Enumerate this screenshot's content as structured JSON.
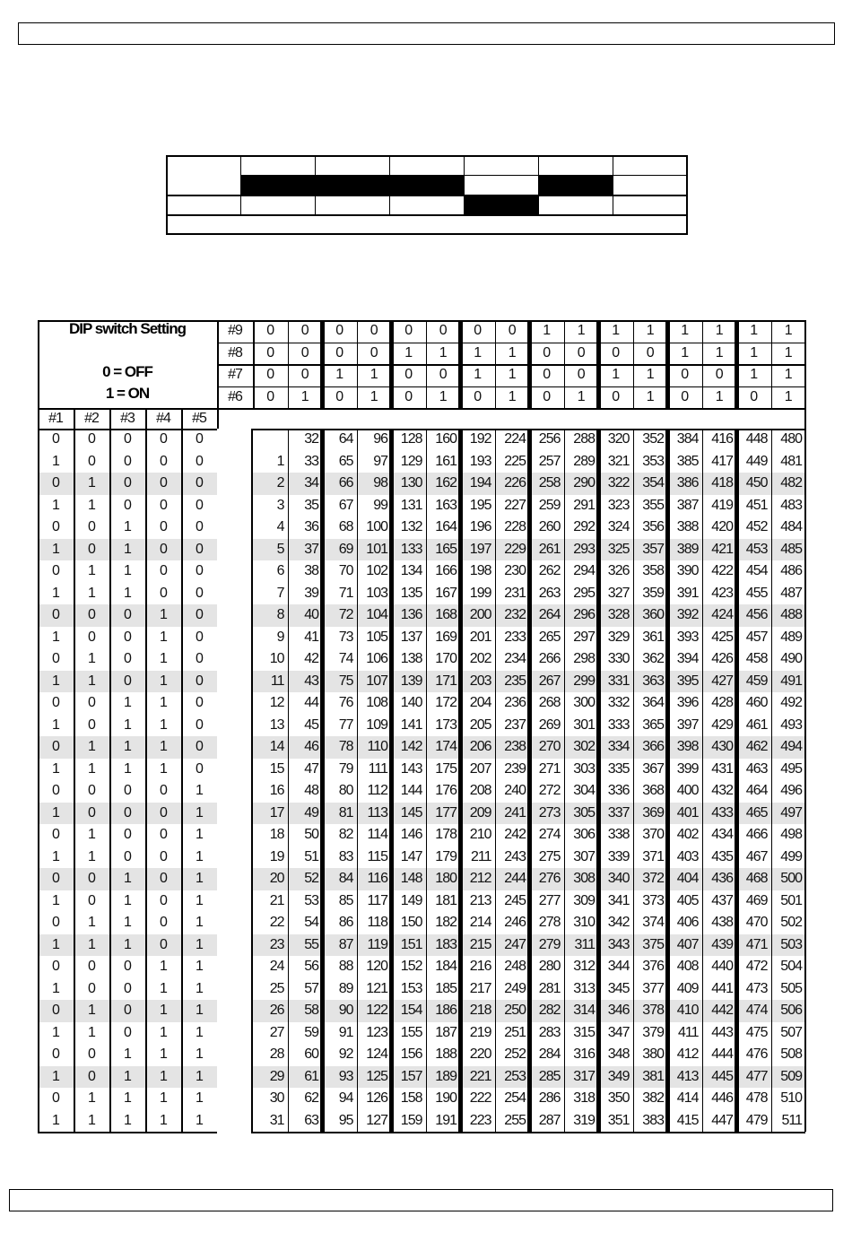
{
  "header_box": {},
  "footer_box": {},
  "small_table": {
    "columns": 7,
    "filled_cells_row2": [
      1,
      2,
      3,
      5
    ],
    "filled_cells_row3": [
      4
    ]
  },
  "dip_table": {
    "title": "DIP switch Setting",
    "legend_off": "0 = OFF",
    "legend_on": "1 = ON",
    "switch_labels": [
      "#1",
      "#2",
      "#3",
      "#4",
      "#5"
    ],
    "header_rows": [
      {
        "label": "#9",
        "bits": [
          0,
          0,
          0,
          0,
          0,
          0,
          0,
          0,
          1,
          1,
          1,
          1,
          1,
          1,
          1,
          1
        ]
      },
      {
        "label": "#8",
        "bits": [
          0,
          0,
          0,
          0,
          1,
          1,
          1,
          1,
          0,
          0,
          0,
          0,
          1,
          1,
          1,
          1
        ]
      },
      {
        "label": "#7",
        "bits": [
          0,
          0,
          1,
          1,
          0,
          0,
          1,
          1,
          0,
          0,
          1,
          1,
          0,
          0,
          1,
          1
        ]
      },
      {
        "label": "#6",
        "bits": [
          0,
          1,
          0,
          1,
          0,
          1,
          0,
          1,
          0,
          1,
          0,
          1,
          0,
          1,
          0,
          1
        ]
      }
    ],
    "shaded_rows": [
      2,
      5,
      8,
      11,
      14,
      17,
      20,
      23,
      26,
      29
    ],
    "shade_color": "#e4e4e4",
    "rows": [
      {
        "switches": [
          0,
          0,
          0,
          0,
          0
        ],
        "values": [
          "",
          32,
          64,
          96,
          128,
          160,
          192,
          224,
          256,
          288,
          320,
          352,
          384,
          416,
          448,
          480
        ]
      },
      {
        "switches": [
          1,
          0,
          0,
          0,
          0
        ],
        "values": [
          1,
          33,
          65,
          97,
          129,
          161,
          193,
          225,
          257,
          289,
          321,
          353,
          385,
          417,
          449,
          481
        ]
      },
      {
        "switches": [
          0,
          1,
          0,
          0,
          0
        ],
        "values": [
          2,
          34,
          66,
          98,
          130,
          162,
          194,
          226,
          258,
          290,
          322,
          354,
          386,
          418,
          450,
          482
        ]
      },
      {
        "switches": [
          1,
          1,
          0,
          0,
          0
        ],
        "values": [
          3,
          35,
          67,
          99,
          131,
          163,
          195,
          227,
          259,
          291,
          323,
          355,
          387,
          419,
          451,
          483
        ]
      },
      {
        "switches": [
          0,
          0,
          1,
          0,
          0
        ],
        "values": [
          4,
          36,
          68,
          100,
          132,
          164,
          196,
          228,
          260,
          292,
          324,
          356,
          388,
          420,
          452,
          484
        ]
      },
      {
        "switches": [
          1,
          0,
          1,
          0,
          0
        ],
        "values": [
          5,
          37,
          69,
          101,
          133,
          165,
          197,
          229,
          261,
          293,
          325,
          357,
          389,
          421,
          453,
          485
        ]
      },
      {
        "switches": [
          0,
          1,
          1,
          0,
          0
        ],
        "values": [
          6,
          38,
          70,
          102,
          134,
          166,
          198,
          230,
          262,
          294,
          326,
          358,
          390,
          422,
          454,
          486
        ]
      },
      {
        "switches": [
          1,
          1,
          1,
          0,
          0
        ],
        "values": [
          7,
          39,
          71,
          103,
          135,
          167,
          199,
          231,
          263,
          295,
          327,
          359,
          391,
          423,
          455,
          487
        ]
      },
      {
        "switches": [
          0,
          0,
          0,
          1,
          0
        ],
        "values": [
          8,
          40,
          72,
          104,
          136,
          168,
          200,
          232,
          264,
          296,
          328,
          360,
          392,
          424,
          456,
          488
        ]
      },
      {
        "switches": [
          1,
          0,
          0,
          1,
          0
        ],
        "values": [
          9,
          41,
          73,
          105,
          137,
          169,
          201,
          233,
          265,
          297,
          329,
          361,
          393,
          425,
          457,
          489
        ]
      },
      {
        "switches": [
          0,
          1,
          0,
          1,
          0
        ],
        "values": [
          10,
          42,
          74,
          106,
          138,
          170,
          202,
          234,
          266,
          298,
          330,
          362,
          394,
          426,
          458,
          490
        ]
      },
      {
        "switches": [
          1,
          1,
          0,
          1,
          0
        ],
        "values": [
          11,
          43,
          75,
          107,
          139,
          171,
          203,
          235,
          267,
          299,
          331,
          363,
          395,
          427,
          459,
          491
        ]
      },
      {
        "switches": [
          0,
          0,
          1,
          1,
          0
        ],
        "values": [
          12,
          44,
          76,
          108,
          140,
          172,
          204,
          236,
          268,
          300,
          332,
          364,
          396,
          428,
          460,
          492
        ]
      },
      {
        "switches": [
          1,
          0,
          1,
          1,
          0
        ],
        "values": [
          13,
          45,
          77,
          109,
          141,
          173,
          205,
          237,
          269,
          301,
          333,
          365,
          397,
          429,
          461,
          493
        ]
      },
      {
        "switches": [
          0,
          1,
          1,
          1,
          0
        ],
        "values": [
          14,
          46,
          78,
          110,
          142,
          174,
          206,
          238,
          270,
          302,
          334,
          366,
          398,
          430,
          462,
          494
        ]
      },
      {
        "switches": [
          1,
          1,
          1,
          1,
          0
        ],
        "values": [
          15,
          47,
          79,
          111,
          143,
          175,
          207,
          239,
          271,
          303,
          335,
          367,
          399,
          431,
          463,
          495
        ]
      },
      {
        "switches": [
          0,
          0,
          0,
          0,
          1
        ],
        "values": [
          16,
          48,
          80,
          112,
          144,
          176,
          208,
          240,
          272,
          304,
          336,
          368,
          400,
          432,
          464,
          496
        ]
      },
      {
        "switches": [
          1,
          0,
          0,
          0,
          1
        ],
        "values": [
          17,
          49,
          81,
          113,
          145,
          177,
          209,
          241,
          273,
          305,
          337,
          369,
          401,
          433,
          465,
          497
        ]
      },
      {
        "switches": [
          0,
          1,
          0,
          0,
          1
        ],
        "values": [
          18,
          50,
          82,
          114,
          146,
          178,
          210,
          242,
          274,
          306,
          338,
          370,
          402,
          434,
          466,
          498
        ]
      },
      {
        "switches": [
          1,
          1,
          0,
          0,
          1
        ],
        "values": [
          19,
          51,
          83,
          115,
          147,
          179,
          211,
          243,
          275,
          307,
          339,
          371,
          403,
          435,
          467,
          499
        ]
      },
      {
        "switches": [
          0,
          0,
          1,
          0,
          1
        ],
        "values": [
          20,
          52,
          84,
          116,
          148,
          180,
          212,
          244,
          276,
          308,
          340,
          372,
          404,
          436,
          468,
          500
        ]
      },
      {
        "switches": [
          1,
          0,
          1,
          0,
          1
        ],
        "values": [
          21,
          53,
          85,
          117,
          149,
          181,
          213,
          245,
          277,
          309,
          341,
          373,
          405,
          437,
          469,
          501
        ]
      },
      {
        "switches": [
          0,
          1,
          1,
          0,
          1
        ],
        "values": [
          22,
          54,
          86,
          118,
          150,
          182,
          214,
          246,
          278,
          310,
          342,
          374,
          406,
          438,
          470,
          502
        ]
      },
      {
        "switches": [
          1,
          1,
          1,
          0,
          1
        ],
        "values": [
          23,
          55,
          87,
          119,
          151,
          183,
          215,
          247,
          279,
          311,
          343,
          375,
          407,
          439,
          471,
          503
        ]
      },
      {
        "switches": [
          0,
          0,
          0,
          1,
          1
        ],
        "values": [
          24,
          56,
          88,
          120,
          152,
          184,
          216,
          248,
          280,
          312,
          344,
          376,
          408,
          440,
          472,
          504
        ]
      },
      {
        "switches": [
          1,
          0,
          0,
          1,
          1
        ],
        "values": [
          25,
          57,
          89,
          121,
          153,
          185,
          217,
          249,
          281,
          313,
          345,
          377,
          409,
          441,
          473,
          505
        ]
      },
      {
        "switches": [
          0,
          1,
          0,
          1,
          1
        ],
        "values": [
          26,
          58,
          90,
          122,
          154,
          186,
          218,
          250,
          282,
          314,
          346,
          378,
          410,
          442,
          474,
          506
        ]
      },
      {
        "switches": [
          1,
          1,
          0,
          1,
          1
        ],
        "values": [
          27,
          59,
          91,
          123,
          155,
          187,
          219,
          251,
          283,
          315,
          347,
          379,
          411,
          443,
          475,
          507
        ]
      },
      {
        "switches": [
          0,
          0,
          1,
          1,
          1
        ],
        "values": [
          28,
          60,
          92,
          124,
          156,
          188,
          220,
          252,
          284,
          316,
          348,
          380,
          412,
          444,
          476,
          508
        ]
      },
      {
        "switches": [
          1,
          0,
          1,
          1,
          1
        ],
        "values": [
          29,
          61,
          93,
          125,
          157,
          189,
          221,
          253,
          285,
          317,
          349,
          381,
          413,
          445,
          477,
          509
        ]
      },
      {
        "switches": [
          0,
          1,
          1,
          1,
          1
        ],
        "values": [
          30,
          62,
          94,
          126,
          158,
          190,
          222,
          254,
          286,
          318,
          350,
          382,
          414,
          446,
          478,
          510
        ]
      },
      {
        "switches": [
          1,
          1,
          1,
          1,
          1
        ],
        "values": [
          31,
          63,
          95,
          127,
          159,
          191,
          223,
          255,
          287,
          319,
          351,
          383,
          415,
          447,
          479,
          511
        ]
      }
    ]
  }
}
